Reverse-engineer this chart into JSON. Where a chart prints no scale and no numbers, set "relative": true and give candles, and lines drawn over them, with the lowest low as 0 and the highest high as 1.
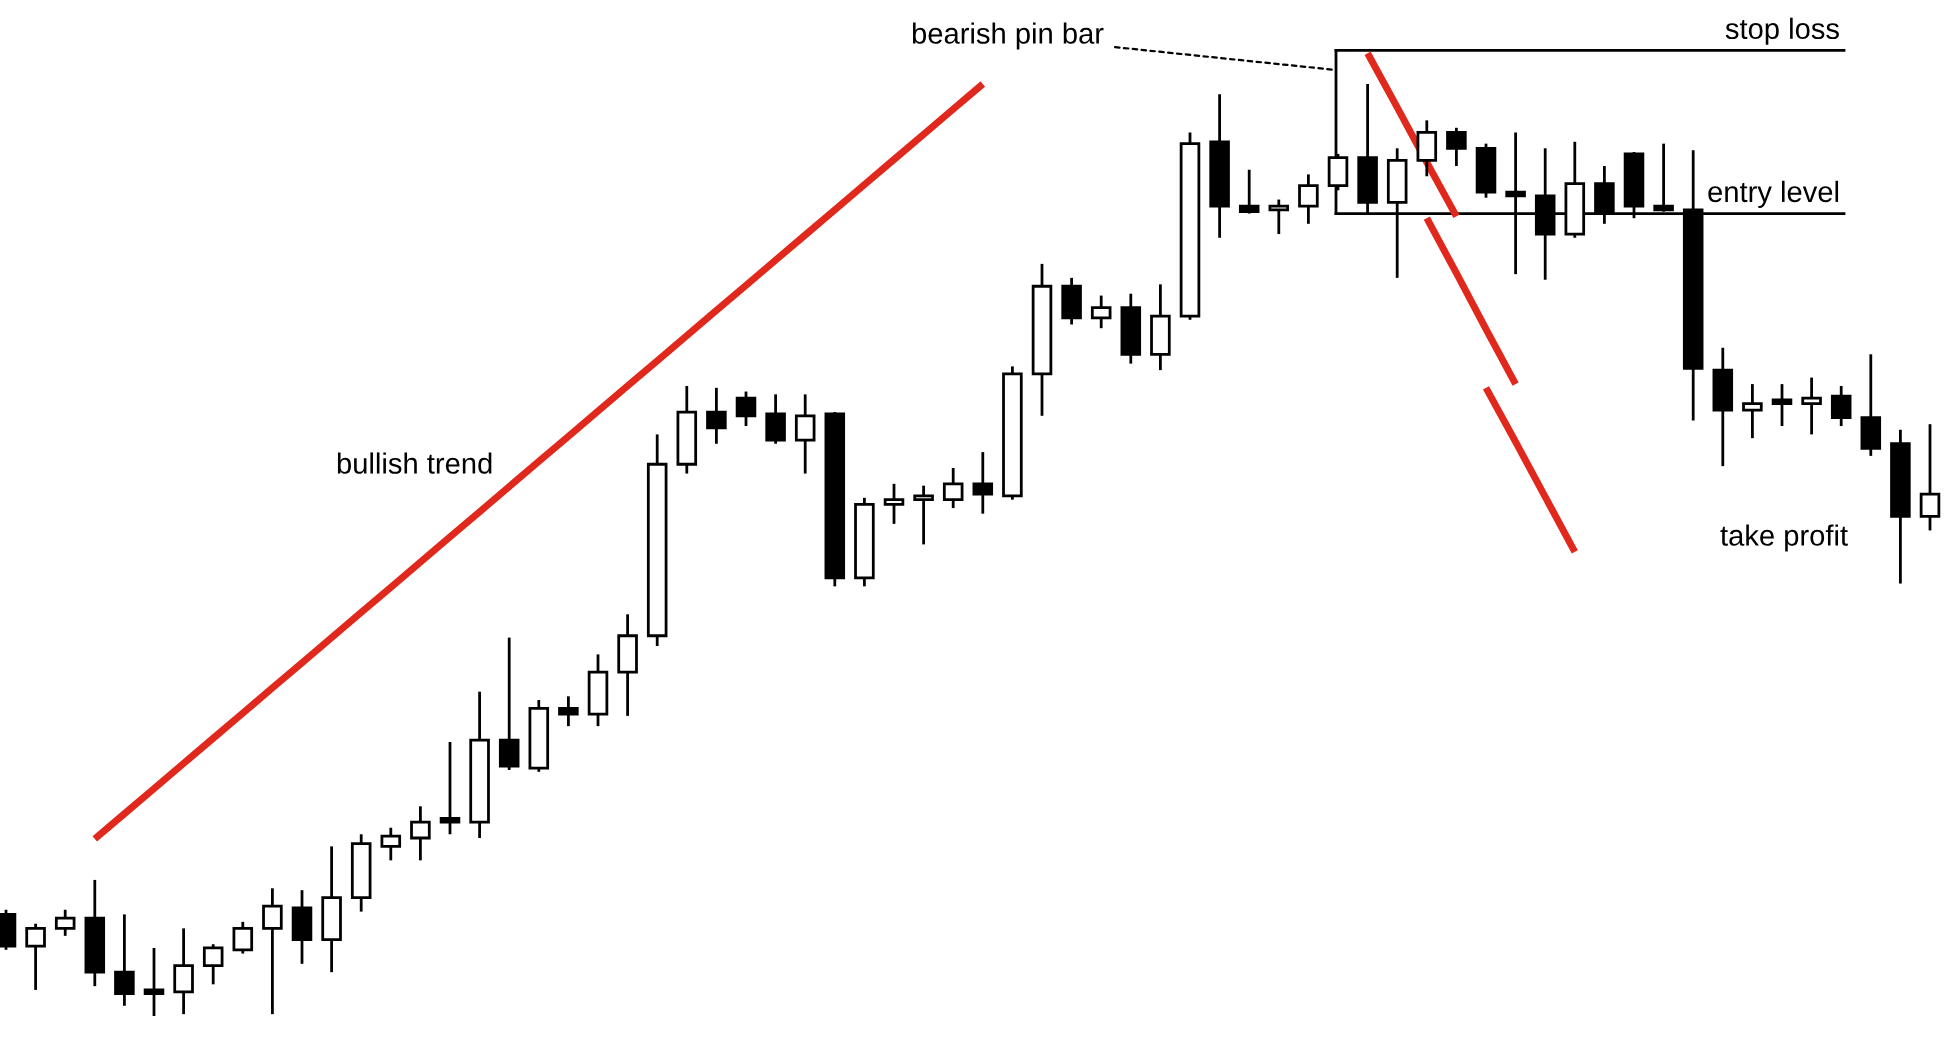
{
  "chart_data": {
    "type": "candlestick",
    "relative": true,
    "categories": [
      null,
      null,
      null,
      null,
      null,
      null,
      null,
      null,
      null,
      null,
      null,
      null,
      null,
      null,
      null,
      null,
      null,
      null,
      null,
      null,
      null,
      null,
      null,
      null,
      null,
      null,
      null,
      null,
      null,
      null,
      null,
      null,
      null,
      null,
      null,
      null,
      null,
      null,
      null,
      null,
      null,
      null,
      null,
      null,
      null,
      null,
      null,
      null,
      null,
      null,
      null,
      null,
      null,
      null,
      null,
      null,
      null,
      null,
      null,
      null,
      null,
      null,
      null,
      null,
      null,
      null
    ],
    "ohlc": [
      [
        0.109,
        0.114,
        0.071,
        0.075
      ],
      [
        0.075,
        0.099,
        0.028,
        0.094
      ],
      [
        0.094,
        0.114,
        0.086,
        0.105
      ],
      [
        0.105,
        0.146,
        0.032,
        0.047
      ],
      [
        0.047,
        0.109,
        0.011,
        0.024
      ],
      [
        0.026,
        0.073,
        0.0,
        0.024
      ],
      [
        0.026,
        0.094,
        0.002,
        0.054
      ],
      [
        0.054,
        0.077,
        0.034,
        0.073
      ],
      [
        0.071,
        0.101,
        0.067,
        0.094
      ],
      [
        0.094,
        0.137,
        0.002,
        0.118
      ],
      [
        0.116,
        0.135,
        0.056,
        0.082
      ],
      [
        0.082,
        0.182,
        0.047,
        0.127
      ],
      [
        0.127,
        0.195,
        0.112,
        0.185
      ],
      [
        0.182,
        0.202,
        0.167,
        0.193
      ],
      [
        0.191,
        0.225,
        0.167,
        0.208
      ],
      [
        0.21,
        0.294,
        0.195,
        0.208
      ],
      [
        0.208,
        0.348,
        0.191,
        0.296
      ],
      [
        0.296,
        0.406,
        0.264,
        0.268
      ],
      [
        0.266,
        0.339,
        0.262,
        0.33
      ],
      [
        0.33,
        0.343,
        0.311,
        0.324
      ],
      [
        0.324,
        0.388,
        0.311,
        0.369
      ],
      [
        0.369,
        0.431,
        0.322,
        0.408
      ],
      [
        0.408,
        0.624,
        0.397,
        0.592
      ],
      [
        0.592,
        0.676,
        0.582,
        0.648
      ],
      [
        0.648,
        0.674,
        0.614,
        0.631
      ],
      [
        0.663,
        0.67,
        0.633,
        0.644
      ],
      [
        0.646,
        0.667,
        0.614,
        0.618
      ],
      [
        0.618,
        0.667,
        0.582,
        0.644
      ],
      [
        0.646,
        0.648,
        0.461,
        0.47
      ],
      [
        0.47,
        0.556,
        0.461,
        0.549
      ],
      [
        0.549,
        0.571,
        0.528,
        0.554
      ],
      [
        0.554,
        0.569,
        0.506,
        0.556
      ],
      [
        0.554,
        0.588,
        0.545,
        0.571
      ],
      [
        0.571,
        0.605,
        0.539,
        0.56
      ],
      [
        0.558,
        0.697,
        0.554,
        0.689
      ],
      [
        0.689,
        0.807,
        0.644,
        0.783
      ],
      [
        0.783,
        0.792,
        0.742,
        0.749
      ],
      [
        0.749,
        0.773,
        0.738,
        0.76
      ],
      [
        0.76,
        0.775,
        0.7,
        0.71
      ],
      [
        0.71,
        0.785,
        0.693,
        0.751
      ],
      [
        0.751,
        0.948,
        0.747,
        0.936
      ],
      [
        0.938,
        0.989,
        0.835,
        0.869
      ],
      [
        0.869,
        0.908,
        0.861,
        0.863
      ],
      [
        0.865,
        0.876,
        0.839,
        0.869
      ],
      [
        0.869,
        0.903,
        0.85,
        0.891
      ],
      [
        0.891,
        0.925,
        0.886,
        0.921
      ],
      [
        0.921,
        1.0,
        0.861,
        0.873
      ],
      [
        0.873,
        0.931,
        0.792,
        0.918
      ],
      [
        0.918,
        0.961,
        0.901,
        0.948
      ],
      [
        0.948,
        0.953,
        0.912,
        0.931
      ],
      [
        0.931,
        0.936,
        0.878,
        0.884
      ],
      [
        0.884,
        0.948,
        0.796,
        0.88
      ],
      [
        0.88,
        0.931,
        0.79,
        0.839
      ],
      [
        0.839,
        0.938,
        0.835,
        0.893
      ],
      [
        0.893,
        0.912,
        0.85,
        0.861
      ],
      [
        0.925,
        0.927,
        0.856,
        0.869
      ],
      [
        0.869,
        0.936,
        0.863,
        0.865
      ],
      [
        0.865,
        0.929,
        0.639,
        0.695
      ],
      [
        0.693,
        0.717,
        0.59,
        0.65
      ],
      [
        0.65,
        0.678,
        0.62,
        0.657
      ],
      [
        0.657,
        0.678,
        0.633,
        0.657
      ],
      [
        0.657,
        0.685,
        0.624,
        0.663
      ],
      [
        0.665,
        0.676,
        0.633,
        0.642
      ],
      [
        0.642,
        0.71,
        0.601,
        0.609
      ],
      [
        0.614,
        0.629,
        0.464,
        0.536
      ],
      [
        0.536,
        0.635,
        0.521,
        0.56
      ]
    ],
    "series": [
      {
        "type": "line",
        "color": "#e0281c",
        "values": [
          null,
          null,
          null,
          0.19,
          0.217,
          0.244,
          0.271,
          0.298,
          0.325,
          0.352,
          0.379,
          0.406,
          0.433,
          0.46,
          0.487,
          0.514,
          0.541,
          0.568,
          0.595,
          0.622,
          0.649,
          0.676,
          0.703,
          0.73,
          0.757,
          0.784,
          0.811,
          0.838,
          0.865,
          0.892,
          0.919,
          0.946,
          0.973,
          1.0,
          null,
          null,
          null,
          null,
          null,
          null,
          null,
          null,
          null,
          null,
          null,
          null,
          null,
          null,
          null,
          null,
          null,
          null,
          null,
          null,
          null,
          null,
          null,
          null,
          null,
          null,
          null,
          null,
          null,
          null,
          null,
          null
        ]
      },
      {
        "type": "line",
        "color": "#e0281c",
        "values": [
          null,
          null,
          null,
          null,
          null,
          null,
          null,
          null,
          null,
          null,
          null,
          null,
          null,
          null,
          null,
          null,
          null,
          null,
          null,
          null,
          null,
          null,
          null,
          null,
          null,
          null,
          null,
          null,
          null,
          null,
          null,
          null,
          null,
          null,
          null,
          null,
          null,
          null,
          null,
          null,
          null,
          null,
          null,
          null,
          null,
          null,
          1.033,
          0.975,
          0.916,
          0.858,
          null,
          null,
          null,
          null,
          null,
          null,
          null,
          null,
          null,
          null,
          null,
          null,
          null,
          null,
          null,
          null
        ]
      },
      {
        "type": "line",
        "color": "#e0281c",
        "values": [
          null,
          null,
          null,
          null,
          null,
          null,
          null,
          null,
          null,
          null,
          null,
          null,
          null,
          null,
          null,
          null,
          null,
          null,
          null,
          null,
          null,
          null,
          null,
          null,
          null,
          null,
          null,
          null,
          null,
          null,
          null,
          null,
          null,
          null,
          null,
          null,
          null,
          null,
          null,
          null,
          null,
          null,
          null,
          null,
          null,
          null,
          null,
          null,
          0.856,
          0.797,
          0.737,
          0.678,
          null,
          null,
          null,
          null,
          null,
          null,
          null,
          null,
          null,
          null,
          null,
          null,
          null,
          null
        ]
      },
      {
        "type": "line",
        "color": "#e0281c",
        "values": [
          null,
          null,
          null,
          null,
          null,
          null,
          null,
          null,
          null,
          null,
          null,
          null,
          null,
          null,
          null,
          null,
          null,
          null,
          null,
          null,
          null,
          null,
          null,
          null,
          null,
          null,
          null,
          null,
          null,
          null,
          null,
          null,
          null,
          null,
          null,
          null,
          null,
          null,
          null,
          null,
          null,
          null,
          null,
          null,
          null,
          null,
          null,
          null,
          null,
          null,
          0.674,
          0.616,
          0.557,
          0.498,
          null,
          null,
          null,
          null,
          null,
          null,
          null,
          null,
          null,
          null,
          null,
          null
        ]
      }
    ],
    "ref_lines": [
      {
        "axis": "y",
        "value": 1.036,
        "label": "stop loss",
        "color": "#000000"
      },
      {
        "axis": "y",
        "value": 0.861,
        "label": "entry level",
        "color": "#000000"
      }
    ],
    "annotations": [
      "bearish pin bar",
      "bullish trend",
      "take profit"
    ]
  }
}
